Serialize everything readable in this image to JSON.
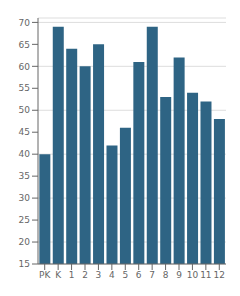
{
  "chart_data": {
    "type": "bar",
    "categories": [
      "PK",
      "K",
      "1",
      "2",
      "3",
      "4",
      "5",
      "6",
      "7",
      "8",
      "9",
      "10",
      "11",
      "12"
    ],
    "values": [
      40,
      69,
      64,
      60,
      65,
      42,
      46,
      61,
      69,
      53,
      62,
      54,
      52,
      48
    ],
    "color": "#2e6484",
    "ylim": [
      15,
      71
    ],
    "yticks": [
      15,
      20,
      25,
      30,
      35,
      40,
      45,
      50,
      55,
      60,
      65,
      70
    ],
    "grid": true
  }
}
